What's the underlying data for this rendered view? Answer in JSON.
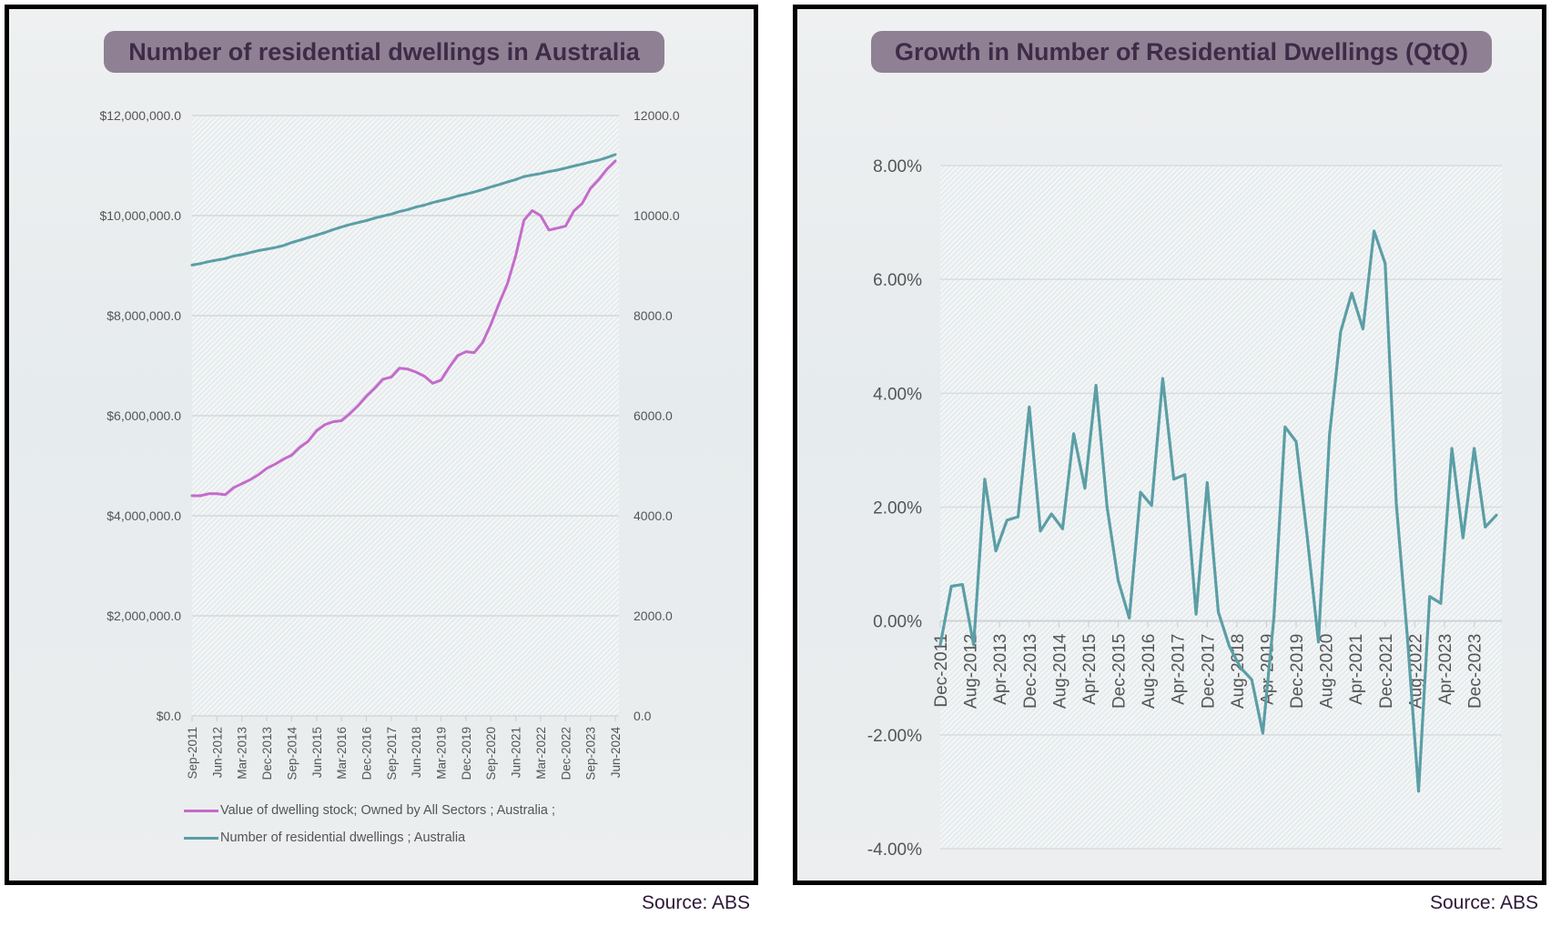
{
  "left_chart": {
    "title": "Number of residential dwellings in Australia",
    "source": "Source: ABS"
  },
  "right_chart": {
    "title": "Growth in Number of Residential Dwellings (QtQ)",
    "source": "Source: ABS"
  },
  "colors": {
    "value_series": "#c46bcb",
    "count_series": "#5b9ea6",
    "title_bg": "#8f8193",
    "title_text": "#3f2a48",
    "gridline": "#d4d7d9",
    "axis_text": "#555555"
  },
  "chart_data": [
    {
      "type": "line",
      "title": "Number of residential dwellings in Australia",
      "xlabel": "",
      "ylabel": "",
      "y_left": {
        "ylim": [
          0,
          12000000
        ],
        "ticks": [
          0,
          2000000,
          4000000,
          6000000,
          8000000,
          10000000,
          12000000
        ],
        "tick_labels": [
          "$0.0",
          "$2,000,000.0",
          "$4,000,000.0",
          "$6,000,000.0",
          "$8,000,000.0",
          "$10,000,000.0",
          "$12,000,000.0"
        ]
      },
      "y_right": {
        "ylim": [
          0,
          12000
        ],
        "ticks": [
          0,
          2000,
          4000,
          6000,
          8000,
          10000,
          12000
        ],
        "tick_labels": [
          "0.0",
          "2000.0",
          "4000.0",
          "6000.0",
          "8000.0",
          "10000.0",
          "12000.0"
        ]
      },
      "x": [
        "Sep-2011",
        "Dec-2011",
        "Mar-2012",
        "Jun-2012",
        "Sep-2012",
        "Dec-2012",
        "Mar-2013",
        "Jun-2013",
        "Sep-2013",
        "Dec-2013",
        "Mar-2014",
        "Jun-2014",
        "Sep-2014",
        "Dec-2014",
        "Mar-2015",
        "Jun-2015",
        "Sep-2015",
        "Dec-2015",
        "Mar-2016",
        "Jun-2016",
        "Sep-2016",
        "Dec-2016",
        "Mar-2017",
        "Jun-2017",
        "Sep-2017",
        "Dec-2017",
        "Mar-2018",
        "Jun-2018",
        "Sep-2018",
        "Dec-2018",
        "Mar-2019",
        "Jun-2019",
        "Sep-2019",
        "Dec-2019",
        "Mar-2020",
        "Jun-2020",
        "Sep-2020",
        "Dec-2020",
        "Mar-2021",
        "Jun-2021",
        "Sep-2021",
        "Dec-2021",
        "Mar-2022",
        "Jun-2022",
        "Sep-2022",
        "Dec-2022",
        "Mar-2023",
        "Jun-2023",
        "Sep-2023",
        "Dec-2023",
        "Mar-2024",
        "Jun-2024"
      ],
      "x_tick_labels": [
        "Sep-2011",
        "Jun-2012",
        "Mar-2013",
        "Dec-2013",
        "Sep-2014",
        "Jun-2015",
        "Mar-2016",
        "Dec-2016",
        "Sep-2017",
        "Jun-2018",
        "Mar-2019",
        "Dec-2019",
        "Sep-2020",
        "Jun-2021",
        "Mar-2022",
        "Dec-2022",
        "Sep-2023",
        "Jun-2024"
      ],
      "grid": true,
      "legend_position": "bottom-left",
      "series": [
        {
          "name": "Value of dwelling stock; Owned by All Sectors ;  Australia ;",
          "axis": "left",
          "color": "#c46bcb",
          "values": [
            4400000,
            4400000,
            4440000,
            4440000,
            4420000,
            4560000,
            4640000,
            4720000,
            4820000,
            4950000,
            5030000,
            5130000,
            5210000,
            5370000,
            5490000,
            5700000,
            5820000,
            5880000,
            5900000,
            6040000,
            6200000,
            6390000,
            6550000,
            6730000,
            6770000,
            6950000,
            6930000,
            6870000,
            6790000,
            6650000,
            6710000,
            6970000,
            7200000,
            7280000,
            7260000,
            7460000,
            7820000,
            8250000,
            8640000,
            9200000,
            9910000,
            10100000,
            10000000,
            9710000,
            9750000,
            9790000,
            10090000,
            10240000,
            10540000,
            10720000,
            10930000,
            11090000
          ]
        },
        {
          "name": "Number of residential dwellings ;  Australia",
          "axis": "right",
          "color": "#5b9ea6",
          "values": [
            9010,
            9040,
            9080,
            9110,
            9140,
            9190,
            9220,
            9260,
            9300,
            9330,
            9360,
            9400,
            9460,
            9510,
            9560,
            9610,
            9660,
            9720,
            9770,
            9820,
            9860,
            9900,
            9950,
            9990,
            10030,
            10080,
            10120,
            10170,
            10210,
            10260,
            10300,
            10340,
            10390,
            10430,
            10470,
            10520,
            10570,
            10620,
            10670,
            10720,
            10780,
            10810,
            10840,
            10880,
            10910,
            10950,
            10990,
            11030,
            11070,
            11110,
            11160,
            11220
          ]
        }
      ]
    },
    {
      "type": "line",
      "title": "Growth in Number of Residential Dwellings (QtQ)",
      "xlabel": "",
      "ylabel": "",
      "ylim": [
        -4,
        8
      ],
      "y_ticks": [
        -4,
        -2,
        0,
        2,
        4,
        6,
        8
      ],
      "y_tick_labels": [
        "-4.00%",
        "-2.00%",
        "0.00%",
        "2.00%",
        "4.00%",
        "6.00%",
        "8.00%"
      ],
      "x": [
        "Dec-2011",
        "Mar-2012",
        "Jun-2012",
        "Sep-2012",
        "Dec-2012",
        "Mar-2013",
        "Jun-2013",
        "Sep-2013",
        "Dec-2013",
        "Mar-2014",
        "Jun-2014",
        "Sep-2014",
        "Dec-2014",
        "Mar-2015",
        "Jun-2015",
        "Sep-2015",
        "Dec-2015",
        "Mar-2016",
        "Jun-2016",
        "Sep-2016",
        "Dec-2016",
        "Mar-2017",
        "Jun-2017",
        "Sep-2017",
        "Dec-2017",
        "Mar-2018",
        "Jun-2018",
        "Sep-2018",
        "Dec-2018",
        "Mar-2019",
        "Jun-2019",
        "Sep-2019",
        "Dec-2019",
        "Mar-2020",
        "Jun-2020",
        "Sep-2020",
        "Dec-2020",
        "Mar-2021",
        "Jun-2021",
        "Sep-2021",
        "Dec-2021",
        "Mar-2022",
        "Jun-2022",
        "Sep-2022",
        "Dec-2022",
        "Mar-2023",
        "Jun-2023",
        "Sep-2023",
        "Dec-2023",
        "Mar-2024",
        "Jun-2024"
      ],
      "x_tick_labels": [
        "Dec-2011",
        "Aug-2012",
        "Apr-2013",
        "Dec-2013",
        "Aug-2014",
        "Apr-2015",
        "Dec-2015",
        "Aug-2016",
        "Apr-2017",
        "Dec-2017",
        "Aug-2018",
        "Apr-2019",
        "Dec-2019",
        "Aug-2020",
        "Apr-2021",
        "Dec-2021",
        "Aug-2022",
        "Apr-2023",
        "Dec-2023"
      ],
      "grid": true,
      "legend_position": "none",
      "series": [
        {
          "name": "QtQ growth",
          "color": "#5b9ea6",
          "unit": "%",
          "values": [
            -0.42,
            0.61,
            0.64,
            -0.42,
            2.49,
            1.23,
            1.77,
            1.83,
            3.76,
            1.58,
            1.88,
            1.62,
            3.29,
            2.33,
            4.14,
            2.0,
            0.71,
            0.05,
            2.26,
            2.03,
            4.26,
            2.49,
            2.57,
            0.12,
            2.43,
            0.16,
            -0.45,
            -0.82,
            -1.03,
            -1.97,
            0.07,
            3.41,
            3.15,
            1.46,
            -0.37,
            3.27,
            5.08,
            5.76,
            5.13,
            6.85,
            6.28,
            2.07,
            -0.28,
            -2.99,
            0.43,
            0.31,
            3.03,
            1.46,
            3.03,
            1.65,
            1.86
          ]
        }
      ]
    }
  ]
}
